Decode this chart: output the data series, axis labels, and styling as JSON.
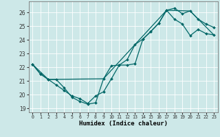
{
  "xlabel": "Humidex (Indice chaleur)",
  "bg_color": "#cde8e8",
  "grid_color": "#b8d8d8",
  "line_color": "#006666",
  "xlim": [
    -0.5,
    23.5
  ],
  "ylim": [
    18.7,
    26.8
  ],
  "xticks": [
    0,
    1,
    2,
    3,
    4,
    5,
    6,
    7,
    8,
    9,
    10,
    11,
    12,
    13,
    14,
    15,
    16,
    17,
    18,
    19,
    20,
    21,
    22,
    23
  ],
  "yticks": [
    19,
    20,
    21,
    22,
    23,
    24,
    25,
    26
  ],
  "line1_x": [
    0,
    1,
    2,
    3,
    4,
    5,
    6,
    7,
    8,
    9,
    10,
    11,
    12,
    13,
    14,
    15,
    16,
    17,
    18,
    19,
    20,
    21,
    22,
    23
  ],
  "line1_y": [
    22.2,
    21.5,
    21.1,
    21.1,
    20.5,
    19.8,
    19.5,
    19.3,
    19.4,
    21.15,
    22.1,
    22.15,
    22.55,
    23.65,
    24.05,
    24.6,
    25.2,
    26.15,
    25.5,
    25.15,
    24.3,
    24.75,
    24.45,
    24.35
  ],
  "line2_x": [
    0,
    1,
    2,
    3,
    4,
    5,
    6,
    7,
    8,
    9,
    10,
    11,
    12,
    13,
    14,
    15,
    16,
    17,
    18,
    19,
    20,
    21,
    22,
    23
  ],
  "line2_y": [
    22.2,
    21.5,
    21.1,
    20.7,
    20.3,
    19.9,
    19.7,
    19.35,
    19.9,
    20.2,
    21.15,
    22.15,
    22.15,
    22.25,
    24.05,
    24.6,
    25.2,
    26.15,
    26.3,
    25.9,
    26.1,
    25.5,
    25.15,
    24.9
  ],
  "line3_x": [
    0,
    2,
    9,
    17,
    20,
    23
  ],
  "line3_y": [
    22.2,
    21.1,
    21.15,
    26.15,
    26.1,
    24.35
  ]
}
